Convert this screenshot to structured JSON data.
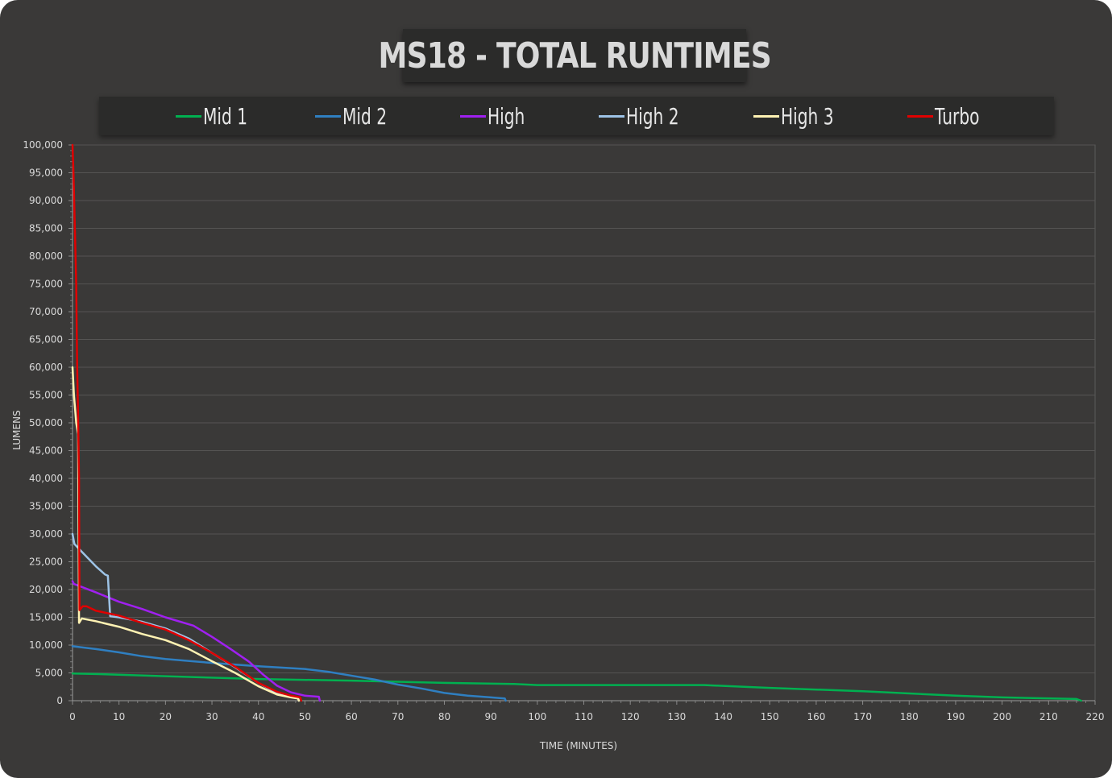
{
  "chart_data": {
    "type": "line",
    "title": "MS18 - TOTAL RUNTIMES",
    "xlabel": "TIME (MINUTES)",
    "ylabel": "LUMENS",
    "xlim": [
      0,
      220
    ],
    "ylim": [
      0,
      100000
    ],
    "x_ticks": [
      0,
      10,
      20,
      30,
      40,
      50,
      60,
      70,
      80,
      90,
      100,
      110,
      120,
      130,
      140,
      150,
      160,
      170,
      180,
      190,
      200,
      210,
      220
    ],
    "x_tick_labels": [
      "0",
      "10",
      "20",
      "30",
      "40",
      "50",
      "60",
      "70",
      "80",
      "90",
      "100",
      "110",
      "120",
      "130",
      "140",
      "150",
      "160",
      "170",
      "180",
      "190",
      "200",
      "210",
      "220"
    ],
    "y_ticks": [
      0,
      5000,
      10000,
      15000,
      20000,
      25000,
      30000,
      35000,
      40000,
      45000,
      50000,
      55000,
      60000,
      65000,
      70000,
      75000,
      80000,
      85000,
      90000,
      95000,
      100000
    ],
    "y_tick_labels": [
      "0",
      "5,000",
      "10,000",
      "15,000",
      "20,000",
      "25,000",
      "30,000",
      "35,000",
      "40,000",
      "45,000",
      "50,000",
      "55,000",
      "60,000",
      "65,000",
      "70,000",
      "75,000",
      "80,000",
      "85,000",
      "90,000",
      "95,000",
      "100,000"
    ],
    "grid": true,
    "legend_position": "top",
    "background": "#3a3938",
    "series": [
      {
        "name": "Mid 1",
        "color": "#00b050",
        "points": [
          [
            0,
            4900
          ],
          [
            5,
            4800
          ],
          [
            20,
            4400
          ],
          [
            40,
            3900
          ],
          [
            60,
            3600
          ],
          [
            80,
            3200
          ],
          [
            95,
            3000
          ],
          [
            100,
            2800
          ],
          [
            120,
            2800
          ],
          [
            136,
            2800
          ],
          [
            150,
            2300
          ],
          [
            170,
            1700
          ],
          [
            190,
            900
          ],
          [
            200,
            600
          ],
          [
            216,
            300
          ],
          [
            217,
            0
          ]
        ]
      },
      {
        "name": "Mid 2",
        "color": "#2f7fc1",
        "points": [
          [
            0,
            9800
          ],
          [
            5,
            9300
          ],
          [
            10,
            8700
          ],
          [
            15,
            8000
          ],
          [
            20,
            7500
          ],
          [
            30,
            6800
          ],
          [
            40,
            6200
          ],
          [
            50,
            5700
          ],
          [
            55,
            5200
          ],
          [
            60,
            4500
          ],
          [
            65,
            3800
          ],
          [
            70,
            2900
          ],
          [
            75,
            2200
          ],
          [
            80,
            1400
          ],
          [
            85,
            900
          ],
          [
            90,
            600
          ],
          [
            93,
            400
          ],
          [
            93.2,
            0
          ]
        ]
      },
      {
        "name": "High",
        "color": "#a020f0",
        "points": [
          [
            0,
            21500
          ],
          [
            0.3,
            21000
          ],
          [
            5,
            19500
          ],
          [
            10,
            17800
          ],
          [
            15,
            16500
          ],
          [
            20,
            15000
          ],
          [
            26,
            13500
          ],
          [
            30,
            11500
          ],
          [
            34,
            9300
          ],
          [
            38,
            7000
          ],
          [
            41,
            4700
          ],
          [
            44,
            2700
          ],
          [
            47,
            1500
          ],
          [
            50,
            900
          ],
          [
            53,
            700
          ],
          [
            53.2,
            0
          ]
        ]
      },
      {
        "name": "High 2",
        "color": "#9dc3e6",
        "points": [
          [
            0,
            30000
          ],
          [
            0.4,
            28200
          ],
          [
            2,
            26800
          ],
          [
            5,
            24200
          ],
          [
            7,
            22700
          ],
          [
            7.6,
            22500
          ],
          [
            8.1,
            15200
          ],
          [
            10,
            15000
          ],
          [
            15,
            14200
          ],
          [
            20,
            13000
          ],
          [
            25,
            11200
          ],
          [
            30,
            8600
          ],
          [
            35,
            6000
          ],
          [
            40,
            3200
          ],
          [
            44,
            1400
          ],
          [
            47,
            700
          ],
          [
            48.5,
            500
          ],
          [
            48.7,
            0
          ]
        ]
      },
      {
        "name": "High 3",
        "color": "#fff2b3",
        "points": [
          [
            0,
            60000
          ],
          [
            0.3,
            55000
          ],
          [
            0.8,
            50000
          ],
          [
            1.2,
            48000
          ],
          [
            1.4,
            14000
          ],
          [
            2,
            14800
          ],
          [
            5,
            14300
          ],
          [
            10,
            13300
          ],
          [
            15,
            12000
          ],
          [
            20,
            10900
          ],
          [
            25,
            9300
          ],
          [
            30,
            7100
          ],
          [
            35,
            5000
          ],
          [
            40,
            2600
          ],
          [
            44,
            1100
          ],
          [
            47,
            600
          ],
          [
            48.5,
            400
          ],
          [
            48.7,
            0
          ]
        ]
      },
      {
        "name": "Turbo",
        "color": "#e00000",
        "points": [
          [
            0,
            100000
          ],
          [
            0.2,
            95000
          ],
          [
            0.5,
            85000
          ],
          [
            0.8,
            75000
          ],
          [
            1.0,
            60000
          ],
          [
            1.2,
            51000
          ],
          [
            1.4,
            40000
          ],
          [
            1.5,
            16300
          ],
          [
            2.2,
            17000
          ],
          [
            3,
            17000
          ],
          [
            5,
            16200
          ],
          [
            10,
            15300
          ],
          [
            15,
            14000
          ],
          [
            20,
            12800
          ],
          [
            25,
            10900
          ],
          [
            30,
            8600
          ],
          [
            35,
            6100
          ],
          [
            40,
            3200
          ],
          [
            44,
            1600
          ],
          [
            47,
            900
          ],
          [
            49,
            600
          ],
          [
            49.2,
            0
          ]
        ]
      }
    ]
  }
}
